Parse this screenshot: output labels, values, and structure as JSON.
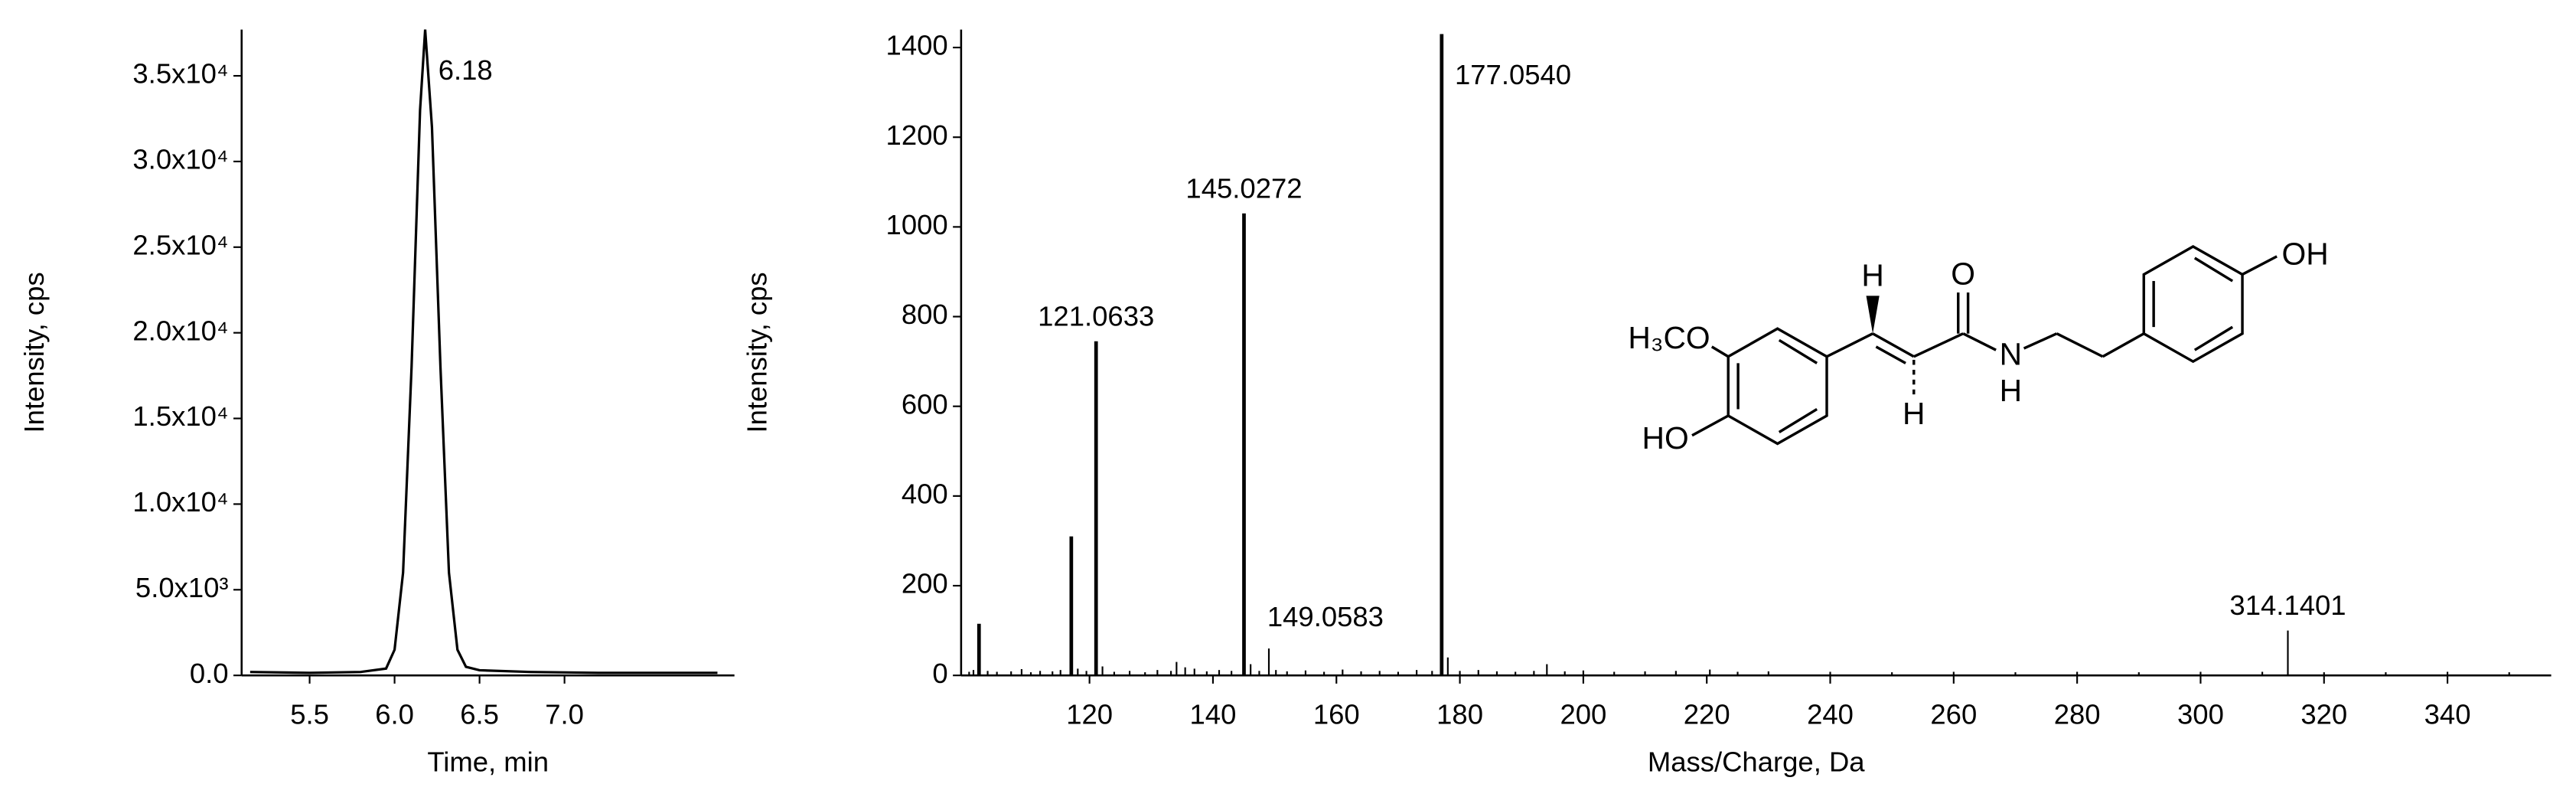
{
  "chart_data": [
    {
      "type": "line",
      "color": "#000000",
      "xlabel": "Time, min",
      "ylabel": "Intensity, cps",
      "x": [
        5.15,
        5.5,
        5.8,
        5.95,
        6.0,
        6.05,
        6.1,
        6.15,
        6.18,
        6.22,
        6.27,
        6.32,
        6.37,
        6.42,
        6.5,
        6.8,
        7.2,
        7.9
      ],
      "values": [
        200,
        150,
        200,
        400,
        1500,
        6000,
        18000,
        33000,
        37700,
        32000,
        18000,
        6000,
        1500,
        500,
        300,
        200,
        150,
        150
      ],
      "x_labels": [
        null,
        null,
        null,
        null,
        null,
        null,
        null,
        null,
        "6.18",
        null,
        null,
        null,
        null,
        null,
        null,
        null,
        null,
        null
      ],
      "xlim": [
        5.1,
        8.0
      ],
      "xticks": [
        5.5,
        {
          "value": 6,
          "label": "6.0"
        },
        6.5,
        {
          "value": 7,
          "label": "7.0"
        }
      ],
      "ylim": [
        0,
        37700
      ],
      "yticks": [
        {
          "value": 0,
          "label": "0.0"
        },
        {
          "value": 5000,
          "label": "5.0x10³"
        },
        {
          "value": 10000,
          "label": "1.0x10⁴"
        },
        {
          "value": 15000,
          "label": "1.5x10⁴"
        },
        {
          "value": 20000,
          "label": "2.0x10⁴"
        },
        {
          "value": 25000,
          "label": "2.5x10⁴"
        },
        {
          "value": 30000,
          "label": "3.0x10⁴"
        },
        {
          "value": 35000,
          "label": "3.5x10⁴"
        }
      ]
    },
    {
      "type": "bar",
      "color": "#000000",
      "xlabel": "Mass/Charge, Da",
      "ylabel": "Intensity, cps",
      "x": [
        100.5,
        101.2,
        102.1,
        103.5,
        105,
        107.3,
        109,
        110.5,
        112,
        114,
        115.3,
        117.05,
        118.1,
        119.5,
        121.0633,
        122.1,
        124,
        126.5,
        129,
        131,
        133.2,
        134.1,
        135.5,
        137,
        139,
        141,
        143,
        145.0272,
        146.1,
        147.5,
        149.0583,
        150.2,
        152,
        155,
        158,
        161,
        164,
        167,
        170,
        173,
        175.5,
        177.054,
        178.05,
        180,
        183,
        186,
        189,
        192,
        194.1,
        197,
        200,
        205,
        210,
        215,
        220.5,
        225,
        230,
        240,
        250,
        260,
        270,
        280,
        290,
        300,
        310,
        314.1401,
        320,
        330,
        340,
        350
      ],
      "values": [
        8,
        12,
        115,
        10,
        8,
        9,
        14,
        7,
        10,
        9,
        12,
        310,
        15,
        10,
        745,
        20,
        8,
        10,
        7,
        12,
        10,
        30,
        18,
        15,
        9,
        12,
        10,
        1030,
        25,
        10,
        60,
        12,
        9,
        11,
        8,
        13,
        9,
        10,
        8,
        12,
        10,
        1430,
        40,
        10,
        12,
        9,
        8,
        10,
        25,
        9,
        11,
        8,
        9,
        10,
        13,
        8,
        9,
        8,
        7,
        8,
        7,
        8,
        7,
        8,
        8,
        100,
        7,
        7,
        8,
        7
      ],
      "x_labels": [
        null,
        null,
        null,
        null,
        null,
        null,
        null,
        null,
        null,
        null,
        null,
        null,
        null,
        null,
        "121.0633",
        null,
        null,
        null,
        null,
        null,
        null,
        null,
        null,
        null,
        null,
        null,
        null,
        "145.0272",
        null,
        null,
        "149.0583",
        null,
        null,
        null,
        null,
        null,
        null,
        null,
        null,
        null,
        null,
        "177.0540",
        null,
        null,
        null,
        null,
        null,
        null,
        null,
        null,
        null,
        null,
        null,
        null,
        null,
        null,
        null,
        null,
        null,
        null,
        null,
        null,
        null,
        null,
        null,
        "314.1401",
        null,
        null,
        null,
        null
      ],
      "xlim": [
        99.2,
        356.8
      ],
      "xticks": [
        120,
        140,
        160,
        180,
        200,
        220,
        240,
        260,
        280,
        300,
        320,
        340
      ],
      "ylim": [
        0,
        1440
      ],
      "yticks": [
        0,
        200,
        400,
        600,
        800,
        1000,
        1200,
        1400
      ]
    }
  ],
  "structure": {
    "labels": [
      "H₃CO",
      "HO",
      "H",
      "H",
      "O",
      "N",
      "H",
      "OH"
    ]
  }
}
